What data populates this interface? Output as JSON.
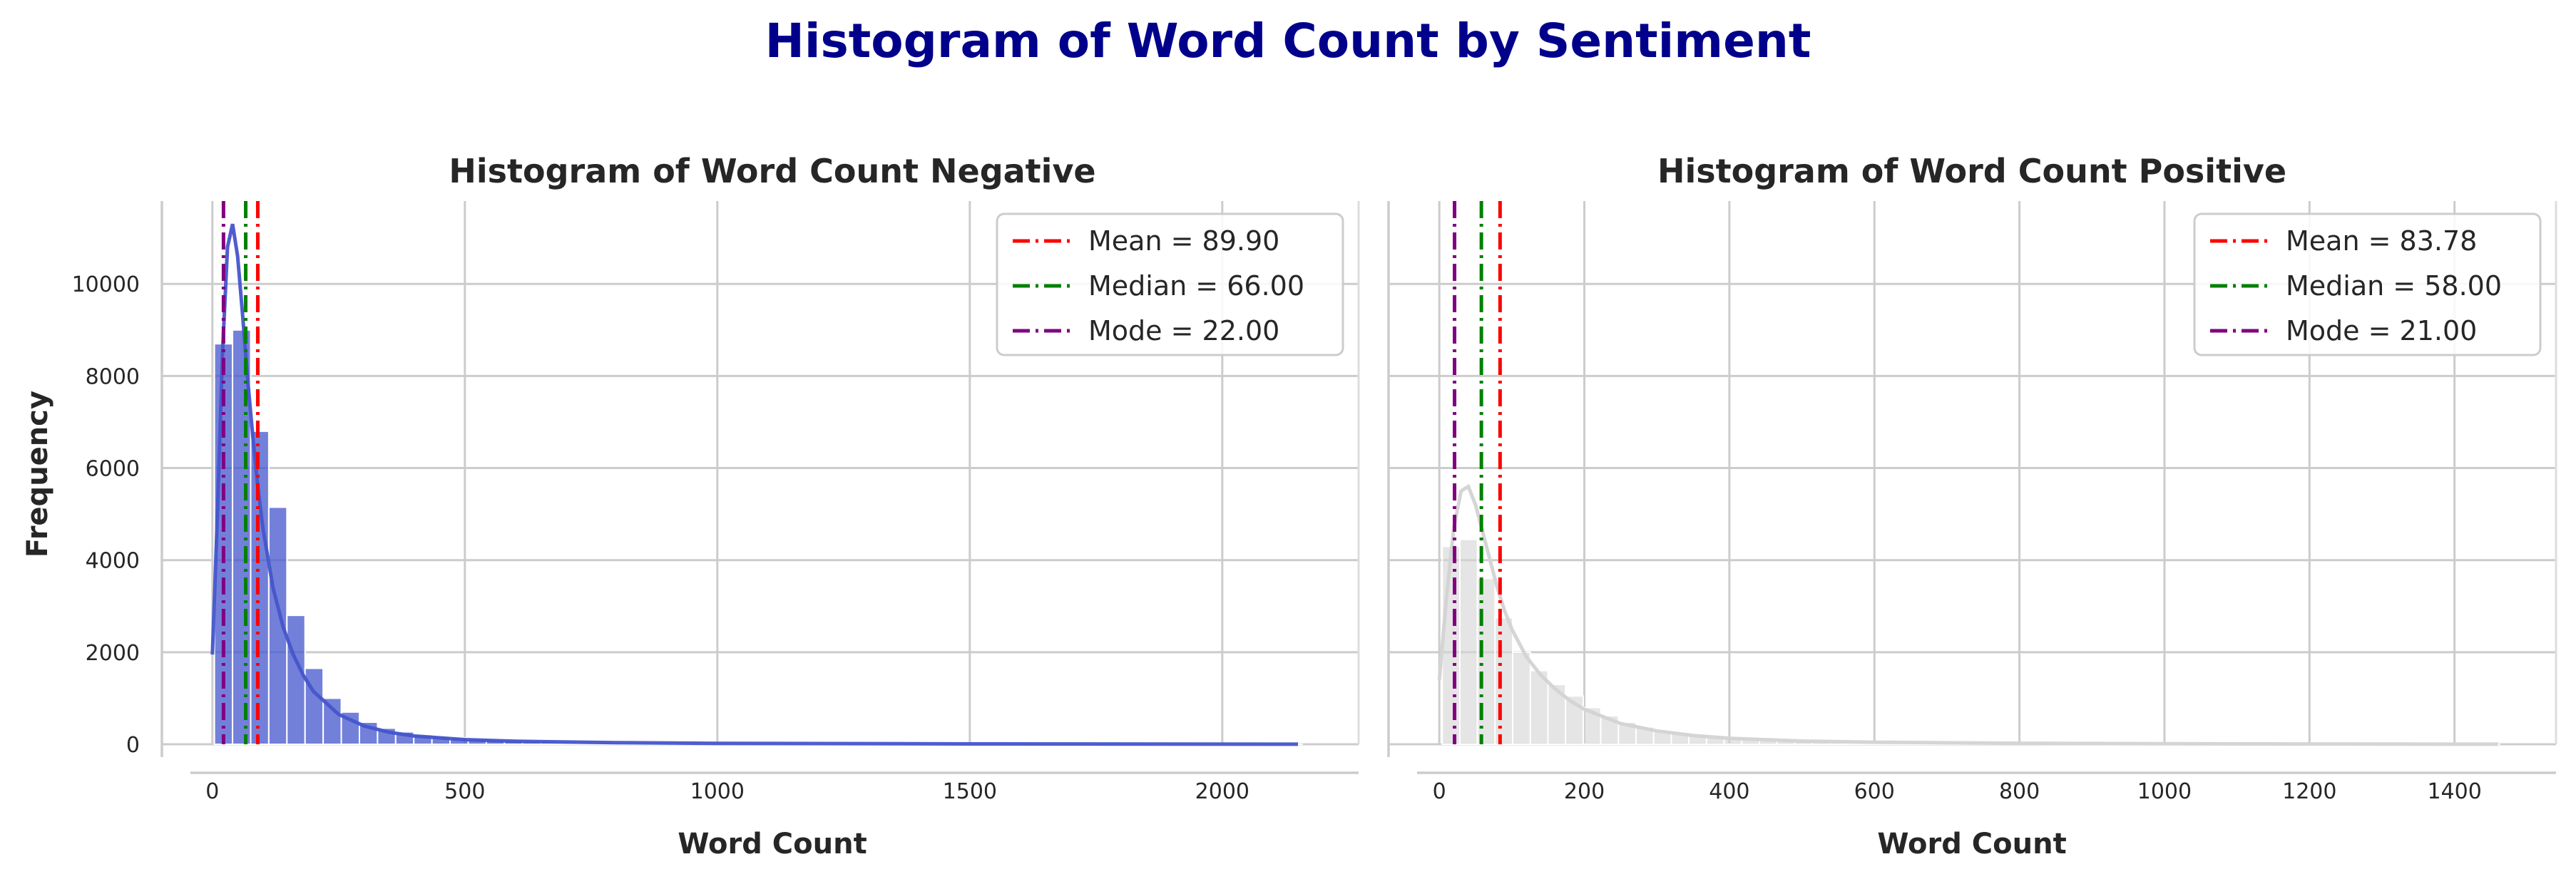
{
  "figure": {
    "title": "Histogram of Word Count by Sentiment",
    "title_color": "#00008B"
  },
  "chart_data": [
    {
      "type": "bar",
      "title": "Histogram of Word Count Negative",
      "xlabel": "Word Count",
      "ylabel": "Frequency",
      "xlim": [
        -100,
        2270
      ],
      "ylim": [
        0,
        11800
      ],
      "xticks": [
        0,
        500,
        1000,
        1500,
        2000
      ],
      "yticks": [
        0,
        2000,
        4000,
        6000,
        8000,
        10000
      ],
      "grid": true,
      "legend_position": "top-right",
      "color": "#4455CC",
      "bar_opacity": 0.75,
      "bin_width": 35.9,
      "bin_start": 4,
      "counts": [
        8700,
        9000,
        6800,
        5150,
        2800,
        1650,
        1000,
        700,
        480,
        350,
        270,
        210,
        170,
        140,
        115,
        95,
        80,
        68,
        58,
        50,
        43,
        37,
        32,
        28,
        24,
        21,
        18,
        16,
        14,
        12,
        11,
        10,
        9,
        8,
        7,
        7,
        6,
        6,
        5,
        5,
        4,
        4,
        4,
        3,
        3,
        3,
        3,
        2,
        2,
        2,
        2,
        2,
        2,
        2,
        1,
        1,
        1,
        1,
        1,
        1
      ],
      "kde": {
        "x": [
          0,
          10,
          20,
          30,
          40,
          50,
          60,
          70,
          80,
          90,
          100,
          120,
          140,
          160,
          180,
          200,
          250,
          300,
          350,
          400,
          500,
          600,
          800,
          1000,
          1500,
          2150
        ],
        "y": [
          1950,
          5000,
          8500,
          10800,
          11300,
          10600,
          9300,
          7900,
          6700,
          5600,
          4700,
          3400,
          2550,
          1950,
          1500,
          1150,
          650,
          400,
          260,
          180,
          100,
          65,
          35,
          20,
          8,
          2
        ]
      },
      "stats": [
        {
          "label": "Mean = 89.90",
          "value": 89.9,
          "color": "#FF0000"
        },
        {
          "label": "Median = 66.00",
          "value": 66.0,
          "color": "#008000"
        },
        {
          "label": "Mode = 22.00",
          "value": 22.0,
          "color": "#800080"
        }
      ]
    },
    {
      "type": "bar",
      "title": "Histogram of Word Count Positive",
      "xlabel": "Word Count",
      "ylabel": "",
      "xlim": [
        -70,
        1540
      ],
      "ylim": [
        0,
        11800
      ],
      "xticks": [
        0,
        200,
        400,
        600,
        800,
        1000,
        1200,
        1400
      ],
      "yticks": [
        0,
        2000,
        4000,
        6000,
        8000,
        10000
      ],
      "grid": true,
      "legend_position": "top-right",
      "color": "#D3D3D3",
      "bar_opacity": 0.6,
      "bin_width": 24.3,
      "bin_start": 4,
      "counts": [
        4300,
        4450,
        3600,
        2750,
        2000,
        1600,
        1300,
        1050,
        800,
        620,
        480,
        380,
        300,
        240,
        195,
        160,
        130,
        108,
        90,
        76,
        64,
        54,
        46,
        40,
        34,
        29,
        25,
        22,
        19,
        17,
        15,
        13,
        12,
        10,
        9,
        8,
        7,
        7,
        6,
        5,
        5,
        4,
        4,
        4,
        3,
        3,
        3,
        3,
        2,
        2,
        2,
        2,
        2,
        2,
        1,
        1,
        1,
        1,
        1,
        1
      ],
      "kde": {
        "x": [
          0,
          10,
          20,
          30,
          40,
          50,
          60,
          70,
          80,
          90,
          100,
          120,
          140,
          160,
          180,
          200,
          250,
          300,
          350,
          400,
          500,
          600,
          800,
          1000,
          1200,
          1460
        ],
        "y": [
          1400,
          3200,
          4700,
          5500,
          5600,
          5200,
          4600,
          4000,
          3400,
          2900,
          2500,
          1900,
          1500,
          1200,
          950,
          760,
          450,
          290,
          190,
          130,
          70,
          45,
          22,
          12,
          6,
          2
        ]
      },
      "stats": [
        {
          "label": "Mean = 83.78",
          "value": 83.78,
          "color": "#FF0000"
        },
        {
          "label": "Median = 58.00",
          "value": 58.0,
          "color": "#008000"
        },
        {
          "label": "Mode = 21.00",
          "value": 21.0,
          "color": "#800080"
        }
      ]
    }
  ]
}
